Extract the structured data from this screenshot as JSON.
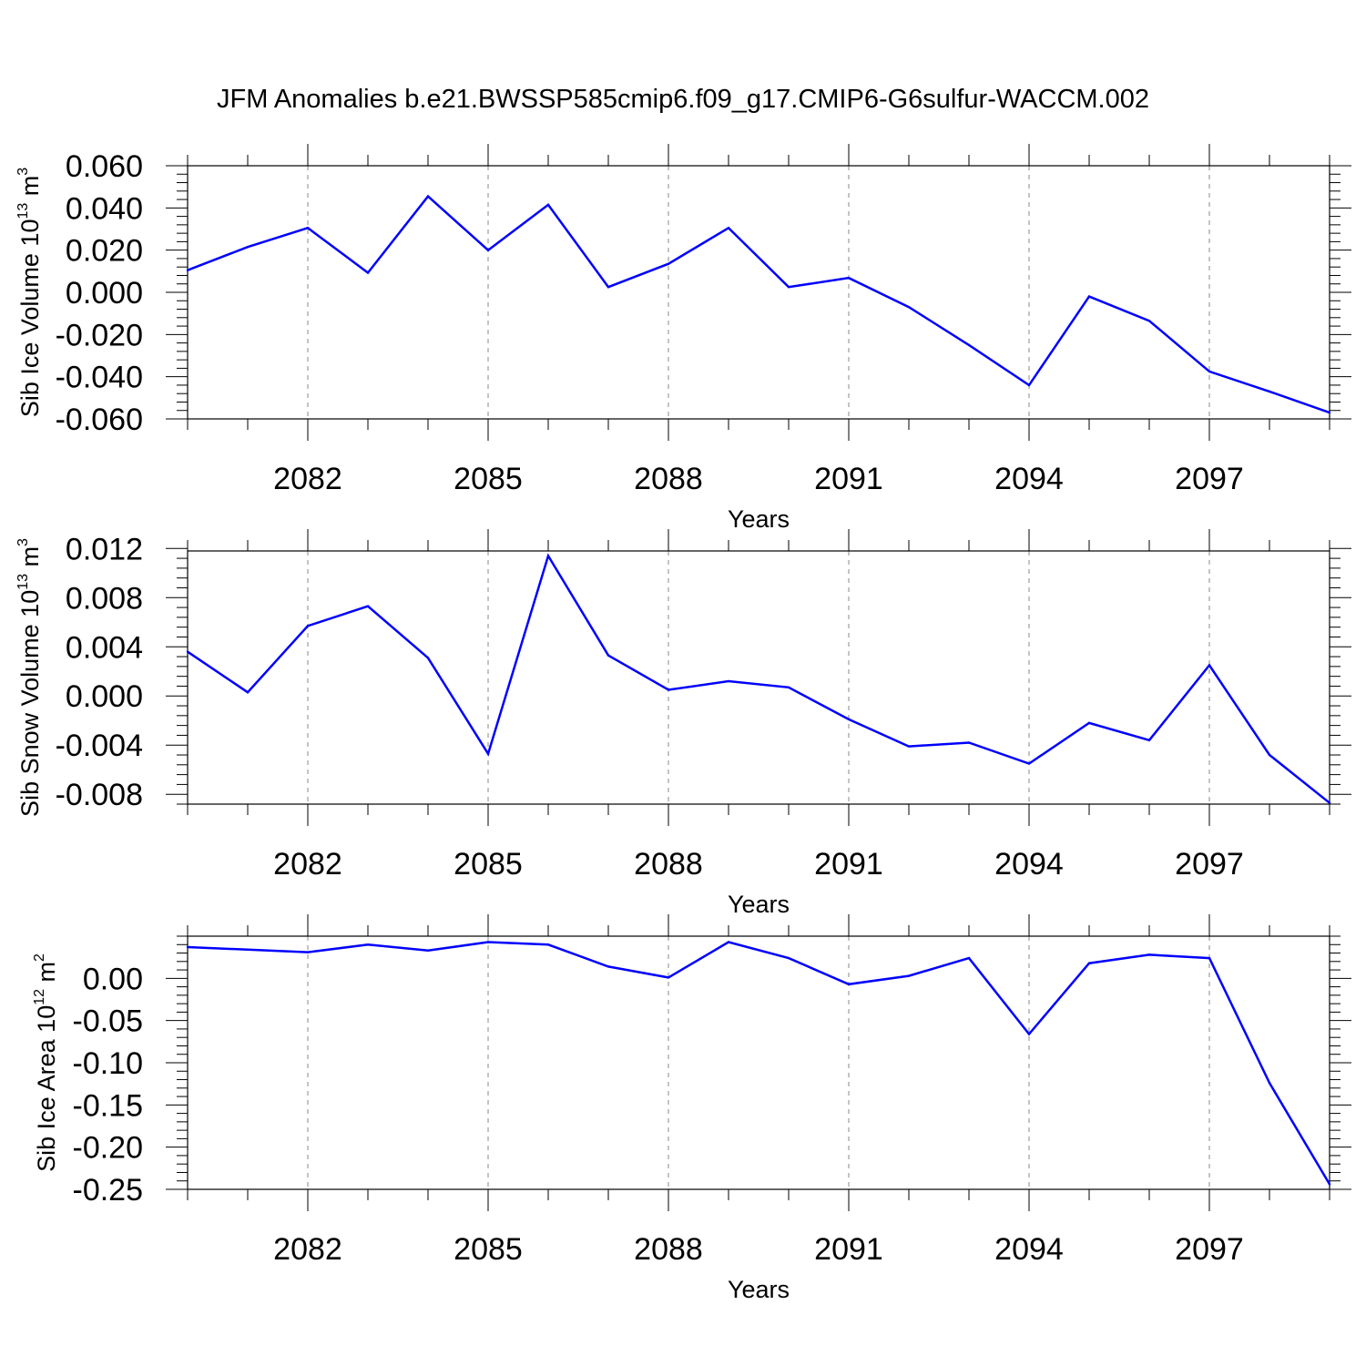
{
  "title": "JFM Anomalies b.e21.BWSSP585cmip6.f09_g17.CMIP6-G6sulfur-WACCM.002",
  "colors": {
    "series": "#0000ff",
    "axis": "#000000",
    "grid": "#888888"
  },
  "chart_data": [
    {
      "type": "line",
      "xlabel": "Years",
      "ylabel": {
        "pre": "Sib Ice Volume 10",
        "sup1": "13",
        "mid": " m",
        "sup2": "3"
      },
      "xlim": [
        2080,
        2099
      ],
      "ylim": [
        -0.06,
        0.06
      ],
      "xticks": [
        2082,
        2085,
        2088,
        2091,
        2094,
        2097
      ],
      "xtick_labels": [
        "2082",
        "2085",
        "2088",
        "2091",
        "2094",
        "2097"
      ],
      "yticks": [
        -0.06,
        -0.04,
        -0.02,
        0.0,
        0.02,
        0.04,
        0.06
      ],
      "ytick_labels": [
        "-0.060",
        "-0.040",
        "-0.020",
        "0.000",
        "0.020",
        "0.040",
        "0.060"
      ],
      "yminor_step": 0.004,
      "grid": "vertical dashed at major x ticks",
      "x": [
        2080,
        2081,
        2082,
        2083,
        2084,
        2085,
        2086,
        2087,
        2088,
        2089,
        2090,
        2091,
        2092,
        2093,
        2094,
        2095,
        2096,
        2097,
        2098,
        2099
      ],
      "values": [
        0.0105,
        0.0215,
        0.0305,
        0.0093,
        0.0455,
        0.02,
        0.0415,
        0.0025,
        0.0135,
        0.0305,
        0.0025,
        0.0068,
        -0.007,
        -0.025,
        -0.044,
        -0.002,
        -0.0135,
        -0.0375,
        -0.047,
        -0.057
      ]
    },
    {
      "type": "line",
      "xlabel": "Years",
      "ylabel": {
        "pre": "Sib Snow Volume 10",
        "sup1": "13",
        "mid": " m",
        "sup2": "3"
      },
      "xlim": [
        2080,
        2099
      ],
      "ylim": [
        -0.0088,
        0.0118
      ],
      "xticks": [
        2082,
        2085,
        2088,
        2091,
        2094,
        2097
      ],
      "xtick_labels": [
        "2082",
        "2085",
        "2088",
        "2091",
        "2094",
        "2097"
      ],
      "yticks": [
        -0.008,
        -0.004,
        0.0,
        0.004,
        0.008,
        0.012
      ],
      "ytick_labels": [
        "-0.008",
        "-0.004",
        "0.000",
        "0.004",
        "0.008",
        "0.012"
      ],
      "yminor_step": 0.0008,
      "grid": "vertical dashed at major x ticks",
      "x": [
        2080,
        2081,
        2082,
        2083,
        2084,
        2085,
        2086,
        2087,
        2088,
        2089,
        2090,
        2091,
        2092,
        2093,
        2094,
        2095,
        2096,
        2097,
        2098,
        2099
      ],
      "values": [
        0.0036,
        0.0003,
        0.0057,
        0.0073,
        0.0031,
        -0.0047,
        0.0114,
        0.0033,
        0.0005,
        0.0012,
        0.0007,
        -0.0019,
        -0.0041,
        -0.0038,
        -0.0055,
        -0.0022,
        -0.0036,
        0.0025,
        -0.0048,
        -0.0087
      ]
    },
    {
      "type": "line",
      "xlabel": "Years",
      "ylabel": {
        "pre": "Sib Ice Area 10",
        "sup1": "12",
        "mid": " m",
        "sup2": "2"
      },
      "xlim": [
        2080,
        2099
      ],
      "ylim": [
        -0.25,
        0.05
      ],
      "xticks": [
        2082,
        2085,
        2088,
        2091,
        2094,
        2097
      ],
      "xtick_labels": [
        "2082",
        "2085",
        "2088",
        "2091",
        "2094",
        "2097"
      ],
      "yticks": [
        -0.25,
        -0.2,
        -0.15,
        -0.1,
        -0.05,
        0.0
      ],
      "ytick_labels": [
        "-0.25",
        "-0.20",
        "-0.15",
        "-0.10",
        "-0.05",
        "0.00"
      ],
      "yminor_step": 0.01,
      "grid": "vertical dashed at major x ticks",
      "x": [
        2080,
        2081,
        2082,
        2083,
        2084,
        2085,
        2086,
        2087,
        2088,
        2089,
        2090,
        2091,
        2092,
        2093,
        2094,
        2095,
        2096,
        2097,
        2098,
        2099
      ],
      "values": [
        0.037,
        0.034,
        0.031,
        0.04,
        0.033,
        0.043,
        0.04,
        0.014,
        0.001,
        0.043,
        0.024,
        -0.007,
        0.003,
        0.024,
        -0.066,
        0.018,
        0.028,
        0.024,
        -0.124,
        -0.244
      ]
    }
  ]
}
